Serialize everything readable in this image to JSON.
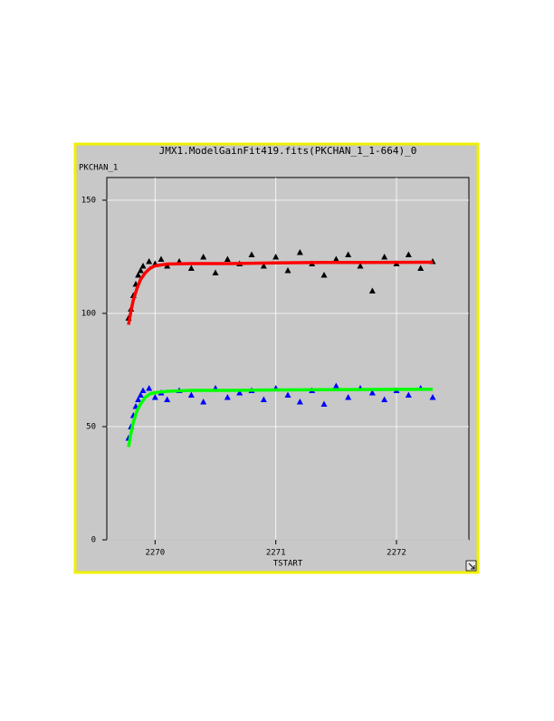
{
  "chart_data": {
    "type": "scatter",
    "title": "JMX1.ModelGainFit419.fits(PKCHAN_1_1-664)_0",
    "y_label": "PKCHAN_1",
    "x_label": "TSTART",
    "xlim": [
      2269.6,
      2272.6
    ],
    "xticks": [
      2270,
      2271,
      2272
    ],
    "ylim": [
      0,
      160
    ],
    "yticks": [
      0,
      50,
      100,
      150
    ],
    "grid": true,
    "series": [
      {
        "color": "#000000",
        "marker": "triangle",
        "x": [
          2269.78,
          2269.8,
          2269.82,
          2269.84,
          2269.86,
          2269.88,
          2269.9,
          2269.95,
          2270.0,
          2270.05,
          2270.1,
          2270.2,
          2270.3,
          2270.4,
          2270.5,
          2270.6,
          2270.7,
          2270.8,
          2270.9,
          2271.0,
          2271.1,
          2271.2,
          2271.3,
          2271.4,
          2271.5,
          2271.6,
          2271.7,
          2271.8,
          2271.9,
          2272.0,
          2272.1,
          2272.2,
          2272.3
        ],
        "values": [
          98,
          102,
          108,
          113,
          117,
          119,
          121,
          123,
          122,
          124,
          121,
          123,
          120,
          125,
          118,
          124,
          122,
          126,
          121,
          125,
          119,
          127,
          122,
          117,
          124,
          126,
          121,
          110,
          125,
          122,
          126,
          120,
          123
        ]
      },
      {
        "color": "#0000ff",
        "marker": "triangle",
        "x": [
          2269.78,
          2269.8,
          2269.82,
          2269.84,
          2269.86,
          2269.88,
          2269.9,
          2269.95,
          2270.0,
          2270.05,
          2270.1,
          2270.2,
          2270.3,
          2270.4,
          2270.5,
          2270.6,
          2270.7,
          2270.8,
          2270.9,
          2271.0,
          2271.1,
          2271.2,
          2271.3,
          2271.4,
          2271.5,
          2271.6,
          2271.7,
          2271.8,
          2271.9,
          2272.0,
          2272.1,
          2272.2,
          2272.3
        ],
        "values": [
          45,
          50,
          55,
          59,
          62,
          64,
          66,
          67,
          63,
          65,
          62,
          66,
          64,
          61,
          67,
          63,
          65,
          66,
          62,
          67,
          64,
          61,
          66,
          60,
          68,
          63,
          67,
          65,
          62,
          66,
          64,
          67,
          63
        ]
      },
      {
        "color": "#ff0000",
        "marker": "line",
        "x": [
          2269.78,
          2269.8,
          2269.82,
          2269.85,
          2269.88,
          2269.92,
          2269.96,
          2270.0,
          2270.1,
          2270.3,
          2270.6,
          2271.0,
          2271.4,
          2271.8,
          2272.3
        ],
        "values": [
          95,
          101,
          106,
          111,
          115,
          118,
          120,
          121,
          121.8,
          122,
          122,
          122.3,
          122.5,
          122.5,
          122.6
        ]
      },
      {
        "color": "#00ff00",
        "marker": "line",
        "x": [
          2269.78,
          2269.8,
          2269.82,
          2269.85,
          2269.88,
          2269.92,
          2269.96,
          2270.0,
          2270.1,
          2270.3,
          2270.6,
          2271.0,
          2271.4,
          2271.8,
          2272.3
        ],
        "values": [
          41,
          47,
          52,
          57,
          60,
          63,
          64.5,
          65,
          65.6,
          66,
          66,
          66.2,
          66.3,
          66.4,
          66.5
        ]
      }
    ]
  }
}
